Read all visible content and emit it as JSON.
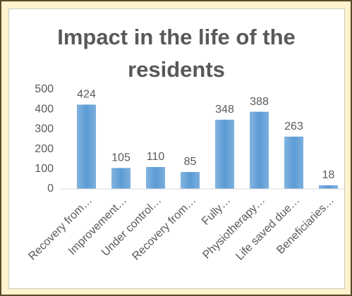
{
  "chart_data": {
    "type": "bar",
    "title": "Impact in the life of the residents",
    "categories": [
      "Recovery from…",
      "Improvement…",
      "Under control…",
      "Recovery from…",
      "Fully…",
      "Physiotherapy…",
      "Life saved due…",
      "Beneficiaries…"
    ],
    "values": [
      424,
      105,
      110,
      85,
      348,
      388,
      263,
      18
    ],
    "color": "#5b9bd5",
    "ylim": [
      0,
      500
    ],
    "yticks": [
      0,
      100,
      200,
      300,
      400,
      500
    ],
    "grid": false
  }
}
